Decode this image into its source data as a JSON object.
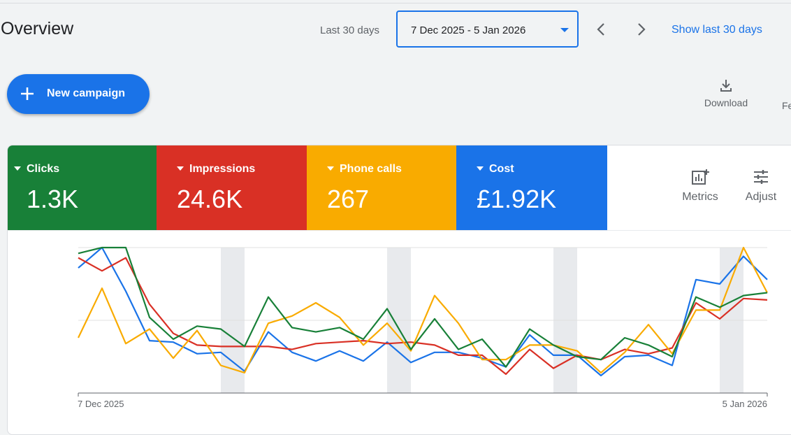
{
  "header": {
    "title": "Overview",
    "range_label": "Last 30 days",
    "date_range": "7 Dec 2025 - 5 Jan 2026",
    "show_last": "Show last 30 days"
  },
  "actions": {
    "new_campaign": "New campaign",
    "download": "Download",
    "cut_off": "Fe"
  },
  "scorecards": [
    {
      "label": "Clicks",
      "value": "1.3K",
      "color": "#188038"
    },
    {
      "label": "Impressions",
      "value": "24.6K",
      "color": "#d93025"
    },
    {
      "label": "Phone calls",
      "value": "267",
      "color": "#f9ab00"
    },
    {
      "label": "Cost",
      "value": "£1.92K",
      "color": "#1a73e8"
    }
  ],
  "tools": {
    "metrics": "Metrics",
    "adjust": "Adjust"
  },
  "chart_data": {
    "type": "line",
    "x_start_label": "7 Dec 2025",
    "x_end_label": "5 Jan 2026",
    "x_count": 30,
    "ylim": [
      0,
      100
    ],
    "grid": true,
    "weekend_bands": [
      6,
      13,
      20,
      27
    ],
    "series": [
      {
        "color": "#1a73e8",
        "values": [
          86,
          100,
          70,
          36,
          35,
          27,
          28,
          15,
          42,
          28,
          22,
          29,
          22,
          35,
          21,
          28,
          28,
          24,
          18,
          40,
          26,
          26,
          12,
          25,
          26,
          19,
          78,
          75,
          94,
          78
        ]
      },
      {
        "color": "#d93025",
        "values": [
          93,
          84,
          93,
          61,
          41,
          33,
          32,
          32,
          32,
          30,
          34,
          35,
          36,
          34,
          35,
          33,
          26,
          26,
          13,
          30,
          17,
          26,
          23,
          30,
          27,
          31,
          62,
          51,
          65,
          64
        ]
      },
      {
        "color": "#f9ab00",
        "values": [
          38,
          72,
          34,
          44,
          24,
          43,
          19,
          14,
          48,
          53,
          62,
          52,
          33,
          48,
          29,
          67,
          48,
          23,
          23,
          33,
          33,
          29,
          14,
          28,
          47,
          27,
          57,
          57,
          100,
          69
        ]
      },
      {
        "color": "#188038",
        "values": [
          96,
          100,
          100,
          52,
          37,
          46,
          44,
          32,
          66,
          45,
          42,
          45,
          37,
          58,
          30,
          51,
          30,
          37,
          18,
          44,
          33,
          25,
          23,
          38,
          33,
          25,
          66,
          59,
          67,
          69
        ]
      }
    ]
  }
}
